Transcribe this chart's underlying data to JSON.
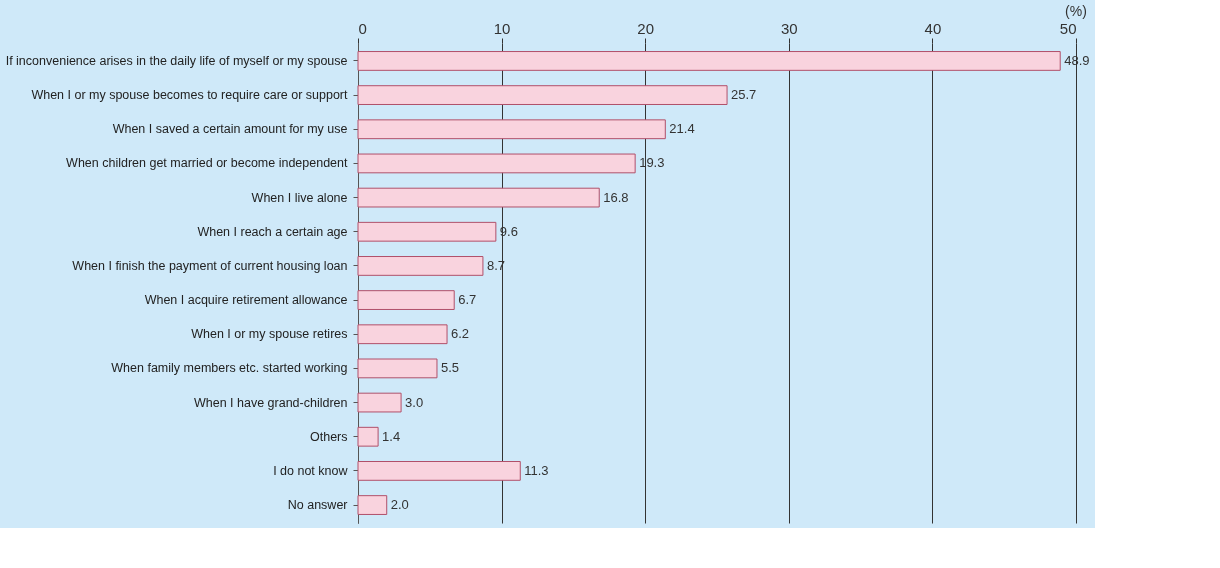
{
  "chart_data": {
    "type": "bar",
    "orientation": "horizontal",
    "xlabel": "(%)",
    "categories": [
      "If inconvenience arises in the daily life of myself or my spouse",
      "When I or my spouse becomes to require care or support",
      "When I saved a certain amount for my use",
      "When children get married or become independent",
      "When I live alone",
      "When I reach a certain age",
      "When I finish the payment of current housing loan",
      "When I acquire retirement allowance",
      "When I or my spouse retires",
      "When family members etc. started working",
      "When I have grand-children",
      "Others",
      "I do not know",
      "No answer"
    ],
    "values": [
      48.9,
      25.7,
      21.4,
      19.3,
      16.8,
      9.6,
      8.7,
      6.7,
      6.2,
      5.5,
      3.0,
      1.4,
      11.3,
      2.0
    ],
    "color": "#f9d3de",
    "xlim": [
      0,
      50
    ],
    "xticks": [
      0,
      10,
      20,
      30,
      40,
      50
    ],
    "value_labels": [
      "48.9",
      "25.7",
      "21.4",
      "19.3",
      "16.8",
      "9.6",
      "8.7",
      "6.7",
      "6.2",
      "5.5",
      "3.0",
      "1.4",
      "11.3",
      "2.0"
    ],
    "grid": "x"
  }
}
